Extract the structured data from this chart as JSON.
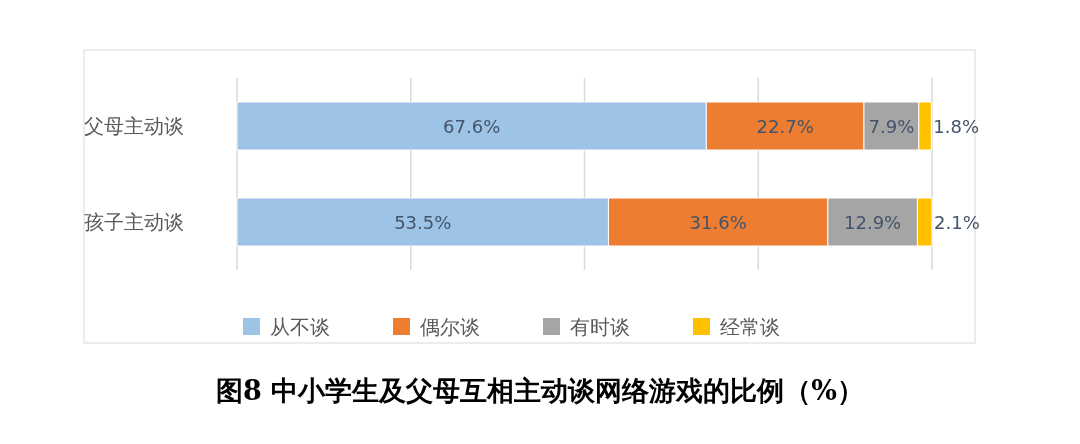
{
  "chart_data": {
    "type": "bar",
    "orientation": "horizontal",
    "stacked": true,
    "title": "图8  中小学生及父母互相主动谈网络游戏的比例（%）",
    "categories": [
      "父母主动谈",
      "孩子主动谈"
    ],
    "series": [
      {
        "name": "从不谈",
        "color": "#9dc3e6",
        "values": [
          67.6,
          53.5
        ],
        "value_labels": [
          "67.6%",
          "53.5%"
        ]
      },
      {
        "name": "偶尔谈",
        "color": "#ed7d31",
        "values": [
          22.7,
          31.6
        ],
        "value_labels": [
          "22.7%",
          "31.6%"
        ]
      },
      {
        "name": "有时谈",
        "color": "#a5a5a5",
        "values": [
          7.9,
          12.9
        ],
        "value_labels": [
          "7.9%",
          "12.9%"
        ]
      },
      {
        "name": "经常谈",
        "color": "#ffc000",
        "values": [
          1.8,
          2.1
        ],
        "value_labels": [
          "1.8%",
          "2.1%"
        ]
      }
    ],
    "tick_labels": "y",
    "grid": "x",
    "legend": "bottom"
  }
}
